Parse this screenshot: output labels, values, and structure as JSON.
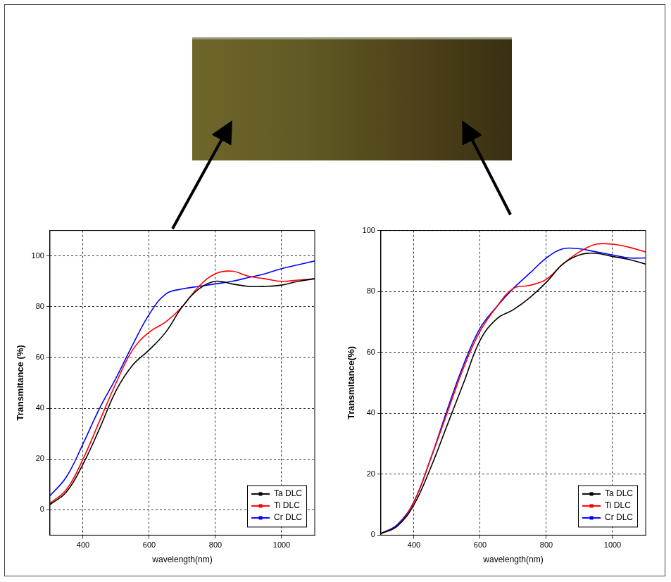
{
  "chart_data": [
    {
      "type": "line",
      "x_label": "wavelength(nm)",
      "y_label": "Transmitance (%)",
      "x": [
        300,
        350,
        400,
        450,
        500,
        550,
        600,
        650,
        700,
        750,
        800,
        850,
        900,
        950,
        1000,
        1050,
        1100
      ],
      "series": [
        {
          "name": "Ta DLC",
          "color": "#000000",
          "values": [
            2,
            7,
            18,
            32,
            47,
            57,
            63,
            70,
            80,
            87,
            90,
            89,
            88,
            88,
            88.5,
            90,
            91
          ]
        },
        {
          "name": "Ti DLC",
          "color": "#ff0000",
          "values": [
            2.5,
            8,
            20,
            35,
            50,
            63,
            70,
            74,
            80,
            88,
            93,
            94,
            92,
            91,
            90,
            90.5,
            91
          ]
        },
        {
          "name": "Cr DLC",
          "color": "#0000ff",
          "values": [
            5.5,
            13,
            26,
            40,
            52,
            65,
            77,
            85,
            87,
            88,
            89,
            90,
            91.5,
            93,
            95,
            96.5,
            98
          ]
        }
      ],
      "xlim": [
        300,
        1100
      ],
      "xticks": [
        400,
        600,
        800,
        1000
      ],
      "ylim": [
        -10,
        110
      ],
      "yticks": [
        0,
        20,
        40,
        60,
        80,
        100
      ],
      "grid": true,
      "legend": "lower right"
    },
    {
      "type": "line",
      "x_label": "wavelength(nm)",
      "y_label": "Transmitance(%)",
      "x": [
        300,
        350,
        400,
        450,
        500,
        550,
        600,
        650,
        700,
        750,
        800,
        850,
        900,
        950,
        1000,
        1050,
        1100
      ],
      "series": [
        {
          "name": "Ta DLC",
          "color": "#000000",
          "values": [
            0.5,
            3,
            10,
            22,
            36,
            50,
            64,
            71,
            74,
            78,
            83,
            89,
            92,
            92.5,
            91.5,
            90.5,
            89
          ]
        },
        {
          "name": "Ti DLC",
          "color": "#ff0000",
          "values": [
            0.5,
            3,
            11,
            25,
            40,
            55,
            67,
            75,
            81,
            82,
            84,
            89,
            93,
            95.5,
            95.5,
            94.5,
            93
          ]
        },
        {
          "name": "Cr DLC",
          "color": "#0000ff",
          "values": [
            0.5,
            3.5,
            11,
            25,
            41,
            56,
            68,
            75,
            81,
            86,
            91,
            94,
            94,
            93,
            92,
            91,
            91
          ]
        }
      ],
      "xlim": [
        300,
        1100
      ],
      "xticks": [
        400,
        600,
        800,
        1000
      ],
      "ylim": [
        0,
        100
      ],
      "yticks": [
        0,
        20,
        40,
        60,
        80,
        100
      ],
      "grid": true,
      "legend": "lower right"
    }
  ]
}
